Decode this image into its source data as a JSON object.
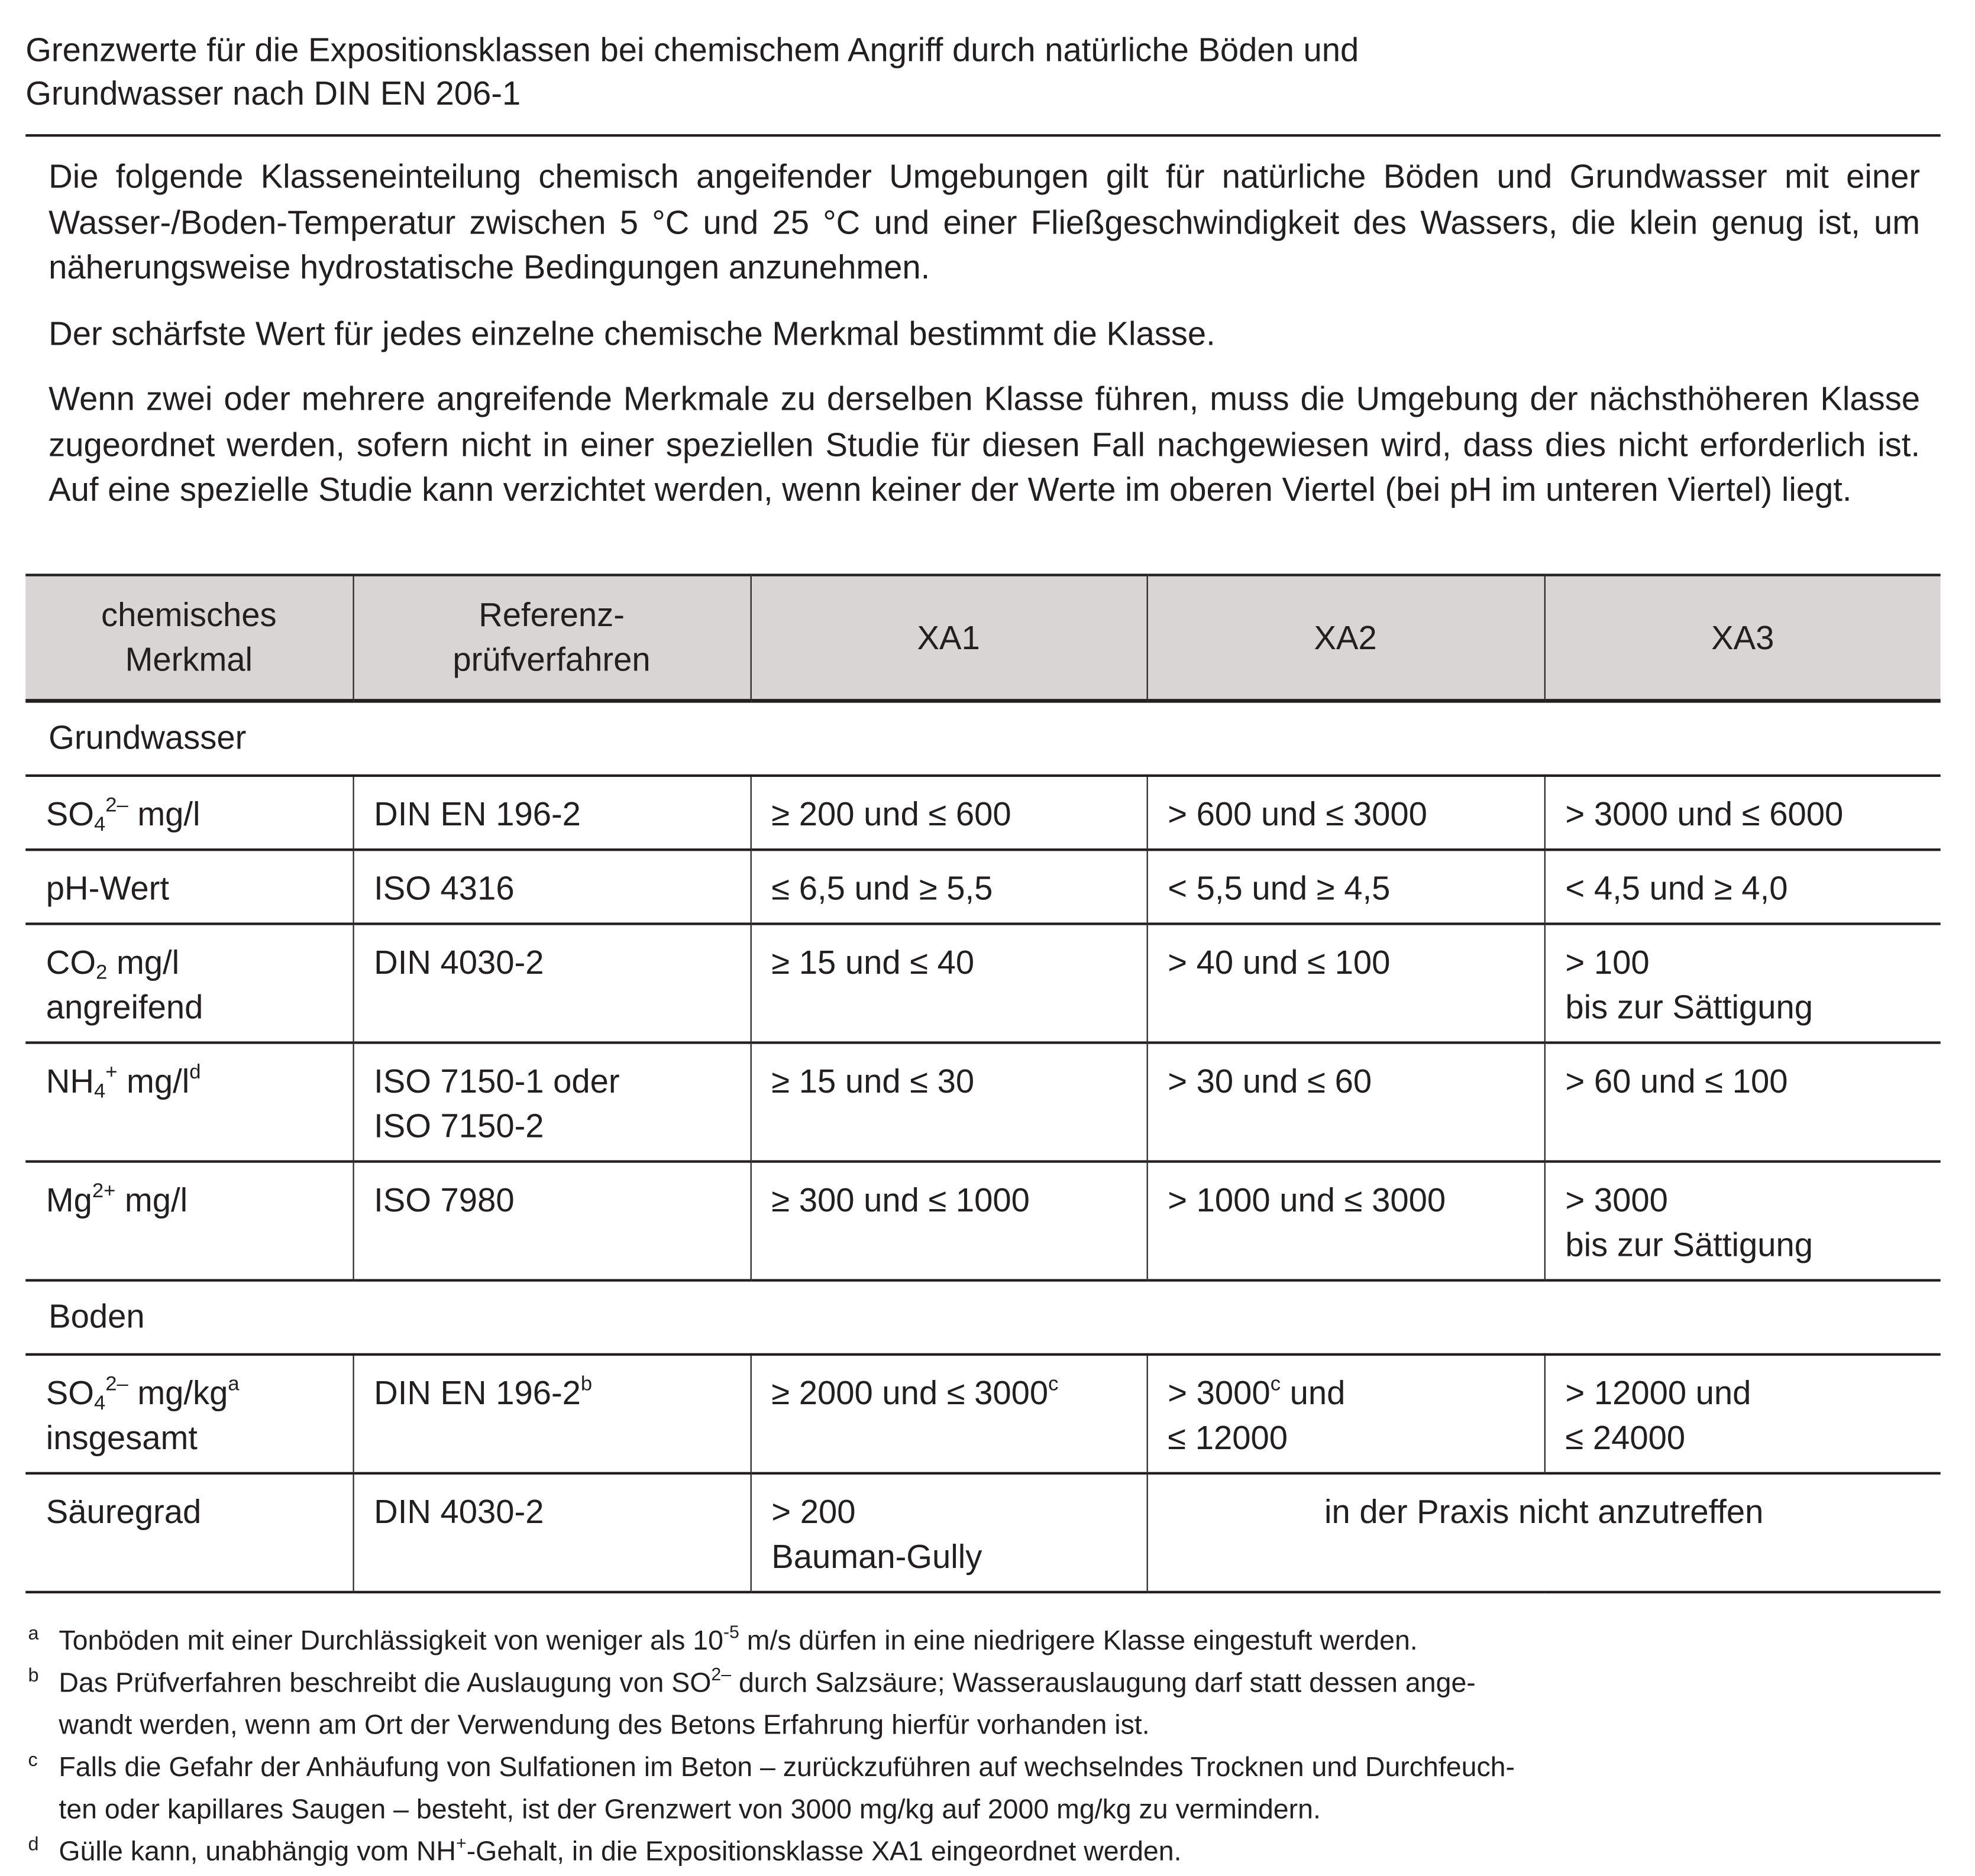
{
  "title": "Grenzwerte für die Expositionsklassen bei chemischem Angriff durch natürliche Böden und\nGrundwasser nach DIN EN 206-1",
  "intro": [
    "Die folgende Klasseneinteilung chemisch angeifender Umgebungen gilt für natürliche Böden und Grundwasser mit einer Wasser-/Boden-Temperatur zwischen 5 °C und 25 °C und einer Fließgeschwindigkeit des Wassers, die klein genug ist, um näherungsweise hydrostatische Bedingungen anzunehmen.",
    "Der schärfste Wert für jedes einzelne chemische Merkmal bestimmt die Klasse.",
    "Wenn zwei oder mehrere angreifende Merkmale zu derselben Klasse führen, muss die Umgebung der nächsthöheren Klasse zugeordnet werden, sofern nicht in einer speziellen Studie für diesen Fall nachgewiesen wird, dass dies nicht erforderlich ist. Auf eine spezielle Studie kann verzichtet werden, wenn keiner der Werte im oberen Viertel (bei pH im unteren Viertel) liegt."
  ],
  "table": {
    "headers": [
      "chemisches\nMerkmal",
      "Referenz-\nprüfverfahren",
      "XA1",
      "XA2",
      "XA3"
    ],
    "rows": [
      {
        "section": "Grundwasser"
      },
      {
        "cells": [
          [
            {
              "text": "SO"
            },
            {
              "text": "4",
              "style": "sub"
            },
            {
              "text": "2–",
              "style": "sup"
            },
            {
              "text": " mg/l"
            }
          ],
          [
            {
              "text": "DIN EN 196-2"
            }
          ],
          [
            {
              "text": "≥ 200 und ≤ 600"
            }
          ],
          [
            {
              "text": "> 600 und ≤ 3000"
            }
          ],
          [
            {
              "text": "> 3000 und ≤ 6000"
            }
          ]
        ]
      },
      {
        "cells": [
          [
            {
              "text": "pH-Wert"
            }
          ],
          [
            {
              "text": "ISO 4316"
            }
          ],
          [
            {
              "text": "≤ 6,5 und ≥ 5,5"
            }
          ],
          [
            {
              "text": "< 5,5 und ≥ 4,5"
            }
          ],
          [
            {
              "text": "< 4,5 und ≥ 4,0"
            }
          ]
        ]
      },
      {
        "cells": [
          [
            {
              "text": "CO"
            },
            {
              "text": "2",
              "style": "sub"
            },
            {
              "text": " mg/l\nangreifend"
            }
          ],
          [
            {
              "text": "DIN 4030-2"
            }
          ],
          [
            {
              "text": "≥ 15 und ≤ 40"
            }
          ],
          [
            {
              "text": "> 40 und ≤ 100"
            }
          ],
          [
            {
              "text": "> 100\nbis zur Sättigung"
            }
          ]
        ]
      },
      {
        "cells": [
          [
            {
              "text": "NH"
            },
            {
              "text": "4",
              "style": "sub"
            },
            {
              "text": "+",
              "style": "sup"
            },
            {
              "text": " mg/l"
            },
            {
              "text": "d",
              "style": "sup"
            }
          ],
          [
            {
              "text": "ISO 7150-1 oder\nISO 7150-2"
            }
          ],
          [
            {
              "text": "≥ 15 und ≤ 30"
            }
          ],
          [
            {
              "text": "> 30 und ≤ 60"
            }
          ],
          [
            {
              "text": "> 60 und ≤ 100"
            }
          ]
        ]
      },
      {
        "cells": [
          [
            {
              "text": "Mg"
            },
            {
              "text": "2+",
              "style": "sup"
            },
            {
              "text": " mg/l"
            }
          ],
          [
            {
              "text": "ISO 7980"
            }
          ],
          [
            {
              "text": "≥ 300 und ≤ 1000"
            }
          ],
          [
            {
              "text": "> 1000 und ≤ 3000"
            }
          ],
          [
            {
              "text": "> 3000\nbis zur Sättigung"
            }
          ]
        ]
      },
      {
        "section": "Boden"
      },
      {
        "cells": [
          [
            {
              "text": "SO"
            },
            {
              "text": "4",
              "style": "sub"
            },
            {
              "text": "2–",
              "style": "sup"
            },
            {
              "text": " mg/kg"
            },
            {
              "text": "a",
              "style": "sup"
            },
            {
              "text": "\ninsgesamt"
            }
          ],
          [
            {
              "text": "DIN EN 196-2"
            },
            {
              "text": "b",
              "style": "sup"
            }
          ],
          [
            {
              "text": "≥ 2000 und ≤ 3000"
            },
            {
              "text": "c",
              "style": "sup"
            }
          ],
          [
            {
              "text": "> 3000"
            },
            {
              "text": "c",
              "style": "sup"
            },
            {
              "text": " und\n≤ 12000"
            }
          ],
          [
            {
              "text": "> 12000 und\n≤ 24000"
            }
          ]
        ]
      },
      {
        "cells": [
          [
            {
              "text": "Säuregrad"
            }
          ],
          [
            {
              "text": "DIN 4030-2"
            }
          ],
          [
            {
              "text": "> 200\nBauman-Gully"
            }
          ],
          [
            {
              "text": "in der Praxis nicht anzutreffen"
            }
          ]
        ],
        "merged_last": true
      }
    ]
  },
  "footnotes": [
    {
      "marker": "a",
      "parts": [
        {
          "text": "Tonböden mit einer Durchlässigkeit von weniger als 10"
        },
        {
          "text": "-5",
          "style": "sup"
        },
        {
          "text": " m/s dürfen in eine niedrigere Klasse eingestuft werden."
        }
      ]
    },
    {
      "marker": "b",
      "parts": [
        {
          "text": "Das Prüfverfahren beschreibt die Auslaugung von SO"
        },
        {
          "text": "2–",
          "style": "sup"
        },
        {
          "text": " durch Salzsäure; Wasserauslaugung darf statt dessen ange-\nwandt werden, wenn am Ort der Verwendung des Betons Erfahrung hierfür vorhanden ist."
        }
      ]
    },
    {
      "marker": "c",
      "parts": [
        {
          "text": "Falls die Gefahr der Anhäufung von Sulfationen im Beton – zurückzuführen auf wechselndes Trocknen und Durchfeuch-\nten oder kapillares Saugen – besteht, ist der Grenzwert von 3000 mg/kg auf 2000 mg/kg zu vermindern."
        }
      ]
    },
    {
      "marker": "d",
      "parts": [
        {
          "text": "Gülle kann, unabhängig vom NH"
        },
        {
          "text": "+",
          "style": "sup"
        },
        {
          "text": "-Gehalt, in die Expositionsklasse XA1 eingeordnet werden."
        }
      ]
    }
  ],
  "colors": {
    "text": "#231f20",
    "header_bg": "#d8d5d4"
  }
}
